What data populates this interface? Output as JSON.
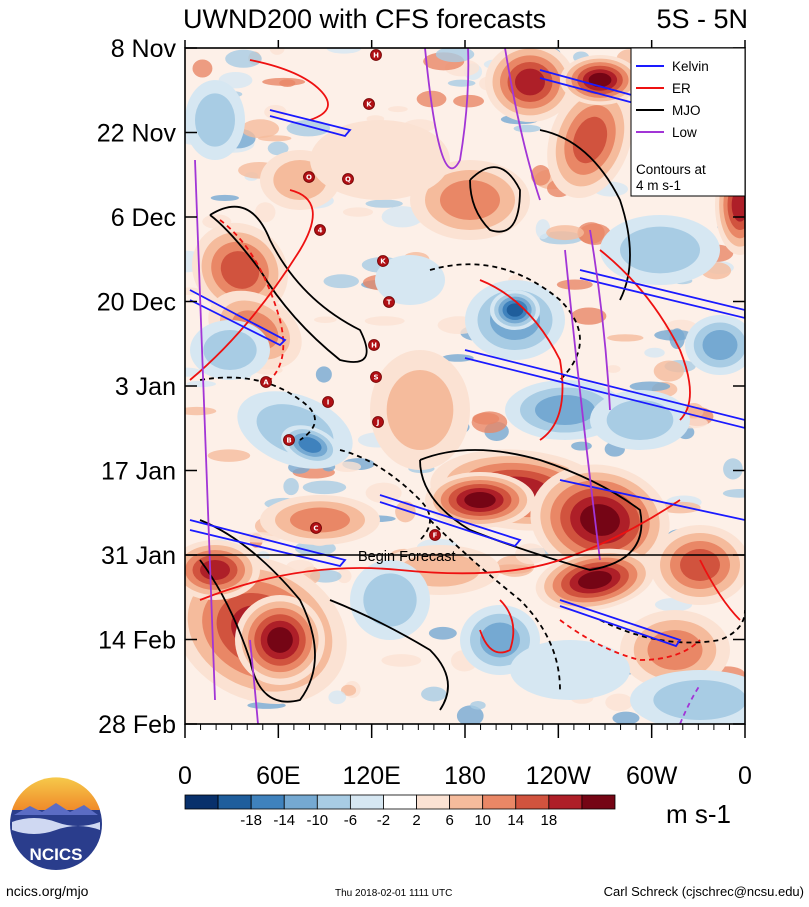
{
  "chart_data": {
    "type": "heatmap",
    "title": "UWND200 with CFS forecasts",
    "region": "5S - 5N",
    "x_ticks": [
      "0",
      "60E",
      "120E",
      "180",
      "120W",
      "60W",
      "0"
    ],
    "y_ticks": [
      "8 Nov",
      "22 Nov",
      "6 Dec",
      "20 Dec",
      "3 Jan",
      "17 Jan",
      "31 Jan",
      "14 Feb",
      "28 Feb"
    ],
    "colorbar": {
      "labels": [
        "-18",
        "-14",
        "-10",
        "-6",
        "-2",
        "2",
        "6",
        "10",
        "14",
        "18"
      ],
      "colors": [
        "#08306b",
        "#1f5e9c",
        "#3f82bd",
        "#75a9d2",
        "#a8cce4",
        "#d6e7f2",
        "#ffffff",
        "#fbe2d3",
        "#f5bb9c",
        "#e98766",
        "#d1533e",
        "#ae1f28",
        "#750515"
      ],
      "units": "m s-1"
    },
    "legend": {
      "items": [
        {
          "label": "Kelvin",
          "color": "#1a1aff"
        },
        {
          "label": "ER",
          "color": "#ee1111"
        },
        {
          "label": "MJO",
          "color": "#000000"
        },
        {
          "label": "Low",
          "color": "#a235d6"
        }
      ],
      "note_line1": "Contours at",
      "note_line2": "4 m s-1"
    },
    "annotation": "Begin Forecast",
    "storm_labels": [
      "H",
      "K",
      "O",
      "Q",
      "4",
      "K",
      "T",
      "H",
      "S",
      "A",
      "I",
      "J",
      "B",
      "C",
      "F"
    ]
  },
  "footer": {
    "logo_text": "NCICS",
    "url": "ncics.org/mjo",
    "timestamp": "Thu 2018-02-01 1111 UTC",
    "author": "Carl Schreck (cjschrec@ncsu.edu)"
  }
}
